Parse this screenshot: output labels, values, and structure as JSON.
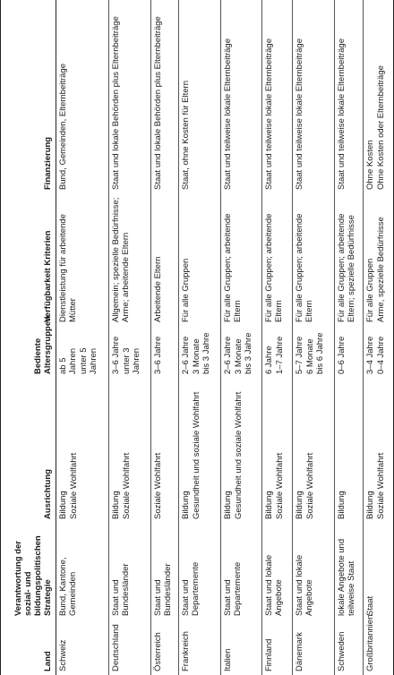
{
  "headers": {
    "land": "Land",
    "verantwortung": "Verantwortung der sozial- und bildungspolitischen Strategie",
    "ausrichtung": "Ausrichtung",
    "altersgruppen": "Bediente Altersgruppen",
    "verfuegbarkeit": "Verfügbarkeit Kriterien",
    "finanzierung": "Finanzierung"
  },
  "rows": [
    {
      "land": "Schweiz",
      "verantwortung": "Bund, Kantone, Gemeinden",
      "ausrichtung": [
        "Bildung",
        "Soziale Wohlfahrt"
      ],
      "altersgruppen": [
        "ab 5 Jahren",
        "unter 5 Jahren"
      ],
      "verfuegbarkeit": [
        "Dienstleistung für arbeitende Mütter"
      ],
      "finanzierung": [
        "Bund, Gemeinden, Elternbeiträge"
      ]
    },
    {
      "land": "Deutschland",
      "verantwortung": "Staat und Bundesländer",
      "ausrichtung": [
        "Bildung",
        "Soziale Wohlfahrt"
      ],
      "altersgruppen": [
        "3–6 Jahre",
        "unter 3 Jahren"
      ],
      "verfuegbarkeit": [
        "Allgemein; spezielle Bedürfnisse; Arme; arbeitende Eltern"
      ],
      "finanzierung": [
        "Staat und lokale Behörden plus Elternbeiträge"
      ]
    },
    {
      "land": "Österreich",
      "verantwortung": "Staat und Bundesländer",
      "ausrichtung": [
        "Soziale Wohlfahrt"
      ],
      "altersgruppen": [
        "3–6 Jahre"
      ],
      "verfuegbarkeit": [
        "Arbeitende Eltern"
      ],
      "finanzierung": [
        "Staat und lokale Behörden plus Elternbeiträge"
      ]
    },
    {
      "land": "Frankreich",
      "verantwortung": "Staat und Departemente",
      "ausrichtung": [
        "Bildung",
        "Gesundheit und soziale Wohlfahrt"
      ],
      "altersgruppen": [
        "2–6 Jahre",
        "3 Monate bis 3 Jahre"
      ],
      "verfuegbarkeit": [
        "Für alle Gruppen"
      ],
      "finanzierung": [
        "Staat, ohne Kosten für Eltern"
      ]
    },
    {
      "land": "Italien",
      "verantwortung": "Staat und Departemente",
      "ausrichtung": [
        "Bildung",
        "Gesundheit und soziale Wohlfahrt"
      ],
      "altersgruppen": [
        "2–6 Jahre",
        "3 Monate bis 3 Jahre"
      ],
      "verfuegbarkeit": [
        "Für alle Gruppen; arbeitende Eltern"
      ],
      "finanzierung": [
        "Staat und teilweise lokale Elternbeiträge"
      ]
    },
    {
      "land": "Finnland",
      "verantwortung": "Staat und lokale Angebote",
      "ausrichtung": [
        "Bildung",
        "Soziale Wohlfahrt"
      ],
      "altersgruppen": [
        "6 Jahre",
        "1–7 Jahre"
      ],
      "verfuegbarkeit": [
        "Für alle Gruppen; arbeitende Eltern"
      ],
      "finanzierung": [
        "Staat und teilweise lokale Elternbeiträge"
      ]
    },
    {
      "land": "Dänemark",
      "verantwortung": "Staat und lokale Angebote",
      "ausrichtung": [
        "Bildung",
        "Soziale Wohlfahrt"
      ],
      "altersgruppen": [
        "5–7 Jahre",
        "6 Monate bis 6 Jahre"
      ],
      "verfuegbarkeit": [
        "Für alle Gruppen; arbeitende Eltern"
      ],
      "finanzierung": [
        "Staat und teilweise lokale Elternbeiträge"
      ]
    },
    {
      "land": "Schweden",
      "verantwortung": "lokale Angebote und teilweise Staat",
      "ausrichtung": [
        "Bildung"
      ],
      "altersgruppen": [
        "0–6 Jahre"
      ],
      "verfuegbarkeit": [
        "Für alle Gruppen; arbeitende Eltern; spezielle Bedürfnisse"
      ],
      "finanzierung": [
        "Staat und teilweise lokale Elternbeiträge"
      ]
    },
    {
      "land": "Großbritannien",
      "verantwortung": "Staat",
      "ausrichtung": [
        "Bildung",
        "Soziale Wohlfahrt"
      ],
      "altersgruppen": [
        "3–4 Jahre",
        "0–4 Jahre"
      ],
      "verfuegbarkeit": [
        "Für alle Gruppen",
        "Arme, spezielle Bedürfnisse"
      ],
      "finanzierung": [
        "Ohne Kosten",
        "Ohne Kosten oder Elternbeiträge"
      ]
    }
  ]
}
